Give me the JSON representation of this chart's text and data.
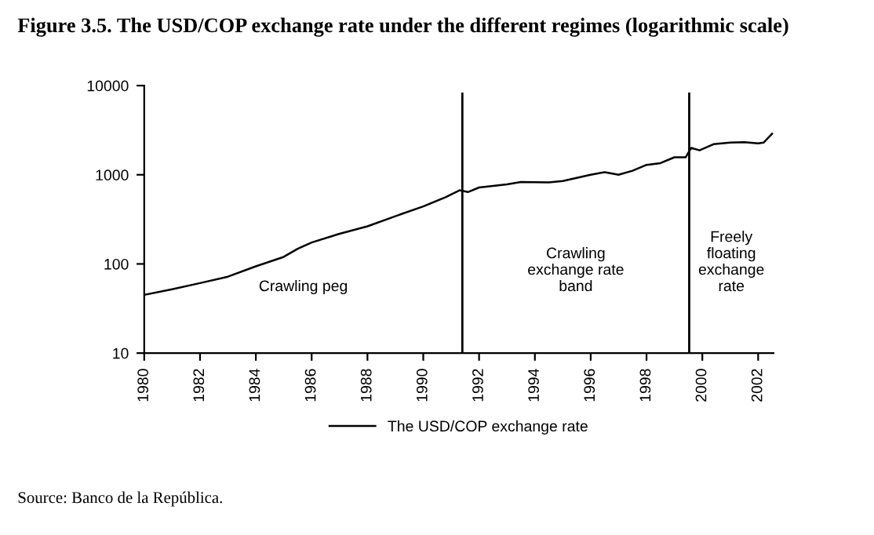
{
  "chart_data": {
    "type": "line",
    "title": "Figure 3.5. The USD/COP exchange rate under the different regimes (logarithmic scale)",
    "x": [
      1980,
      1981,
      1982,
      1983,
      1984,
      1985,
      1985.5,
      1986,
      1987,
      1988,
      1989,
      1990,
      1990.8,
      1991.3,
      1991.6,
      1992,
      1993,
      1993.5,
      1994.5,
      1995,
      1996,
      1996.5,
      1997,
      1997.5,
      1998,
      1998.5,
      1999,
      1999.4,
      1999.6,
      1999.9,
      2000.4,
      2001,
      2001.5,
      2002,
      2002.2,
      2002.5
    ],
    "series": [
      {
        "name": "The USD/COP exchange rate",
        "color": "#000000",
        "values": [
          45,
          52,
          61,
          72,
          94,
          120,
          148,
          174,
          218,
          264,
          343,
          442,
          560,
          670,
          640,
          720,
          780,
          830,
          820,
          850,
          1000,
          1070,
          1000,
          1110,
          1290,
          1350,
          1570,
          1570,
          2000,
          1880,
          2200,
          2300,
          2320,
          2250,
          2300,
          2880
        ]
      }
    ],
    "xlim": [
      1980,
      2002.55
    ],
    "xticks": [
      1980,
      1982,
      1984,
      1986,
      1988,
      1990,
      1992,
      1994,
      1996,
      1998,
      2000,
      2002
    ],
    "ylim": [
      10,
      10000
    ],
    "yticks": [
      10,
      100,
      1000,
      10000
    ],
    "log": "y",
    "grid": false,
    "legend": "bottom",
    "line_style": "solid",
    "marker": "none",
    "ref_lines": [
      {
        "axis": "x",
        "value": 1991.4,
        "color": "#000000"
      },
      {
        "axis": "x",
        "value": 1999.53,
        "color": "#000000"
      }
    ],
    "annotations": [
      "Crawling peg",
      "Crawling\nexchange rate\nband",
      "Freely\nfloating\nexchange\nrate",
      "Source: Banco de la República."
    ]
  }
}
